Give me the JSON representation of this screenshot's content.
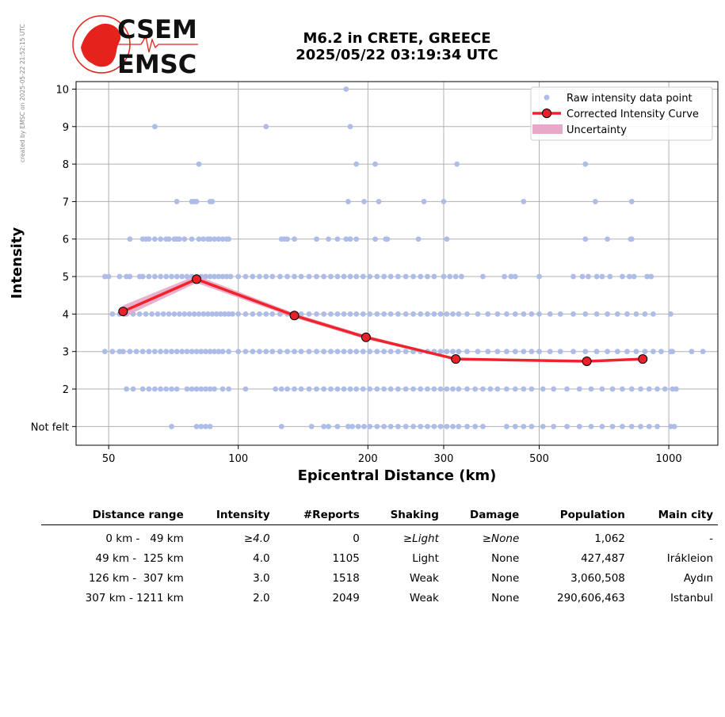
{
  "credit": "created by EMSC on 2025-05-22 21:52:15 UTC",
  "logo": {
    "line1": "CSEM",
    "line2": "EMSC"
  },
  "header": {
    "line1": "M6.2 in CRETE, GREECE",
    "line2": "2025/05/22 03:19:34 UTC"
  },
  "colors": {
    "raw_points": "#aebde8",
    "curve": "#f0232b",
    "marker": "#e8212a",
    "uncertainty": "#e8a8c8",
    "grid": "#b0b0b0",
    "logo_red": "#e5231c"
  },
  "chart_data": {
    "type": "scatter",
    "xlabel": "Epicentral Distance (km)",
    "ylabel": "Intensity",
    "x_scale": "log",
    "xlim": [
      42,
      1300
    ],
    "ylim": [
      0.5,
      10.2
    ],
    "x_ticks": [
      50,
      100,
      200,
      300,
      500,
      1000
    ],
    "y_ticks": [
      1,
      2,
      3,
      4,
      5,
      6,
      7,
      8,
      9,
      10
    ],
    "y_tick_labels": [
      "Not felt",
      "2",
      "3",
      "4",
      "5",
      "6",
      "7",
      "8",
      "9",
      "10"
    ],
    "grid": true,
    "legend_position": "top-right",
    "legend": {
      "raw": "Raw intensity data point",
      "curve": "Corrected Intensity Curve",
      "uncertainty": "Uncertainty"
    },
    "curve": {
      "name": "Corrected Intensity Curve",
      "x": [
        54,
        80,
        135,
        198,
        320,
        645,
        870
      ],
      "y": [
        4.07,
        4.93,
        3.96,
        3.38,
        2.8,
        2.74,
        2.8
      ]
    },
    "raw_points": [
      {
        "intensity": 10,
        "x": [
          178
        ]
      },
      {
        "intensity": 9,
        "x": [
          64,
          116,
          182
        ]
      },
      {
        "intensity": 8,
        "x": [
          81,
          188,
          208,
          322,
          640
        ]
      },
      {
        "intensity": 7,
        "x": [
          72,
          78,
          79,
          80,
          86,
          87,
          180,
          196,
          212,
          270,
          300,
          460,
          675,
          820
        ]
      },
      {
        "intensity": 6,
        "x": [
          56,
          60,
          61,
          62,
          64,
          66,
          68,
          69,
          71,
          72,
          73,
          75,
          78,
          81,
          83,
          85,
          86,
          88,
          90,
          92,
          94,
          95,
          126,
          128,
          130,
          135,
          152,
          162,
          170,
          178,
          182,
          188,
          208,
          220,
          222,
          262,
          305,
          640,
          720,
          815,
          820
        ]
      },
      {
        "intensity": 5,
        "x": [
          49,
          50,
          53,
          55,
          56,
          59,
          60,
          62,
          64,
          66,
          68,
          70,
          72,
          74,
          76,
          78,
          80,
          82,
          84,
          86,
          88,
          90,
          92,
          94,
          96,
          100,
          104,
          108,
          112,
          116,
          120,
          125,
          130,
          135,
          140,
          146,
          152,
          158,
          164,
          170,
          176,
          182,
          188,
          195,
          202,
          210,
          218,
          226,
          235,
          245,
          255,
          265,
          275,
          285,
          300,
          310,
          320,
          330,
          370,
          415,
          430,
          440,
          500,
          600,
          630,
          650,
          680,
          700,
          730,
          780,
          810,
          830,
          890,
          910
        ]
      },
      {
        "intensity": 4,
        "x": [
          51,
          53,
          55,
          57,
          59,
          61,
          63,
          65,
          67,
          69,
          71,
          73,
          75,
          77,
          79,
          81,
          83,
          85,
          87,
          89,
          91,
          93,
          95,
          97,
          100,
          104,
          108,
          112,
          116,
          120,
          125,
          130,
          135,
          140,
          146,
          152,
          158,
          164,
          170,
          176,
          182,
          188,
          195,
          202,
          210,
          218,
          226,
          235,
          245,
          255,
          265,
          275,
          285,
          295,
          305,
          315,
          325,
          340,
          360,
          380,
          400,
          420,
          440,
          460,
          480,
          500,
          530,
          560,
          600,
          640,
          680,
          720,
          760,
          800,
          840,
          880,
          920,
          1010
        ]
      },
      {
        "intensity": 3,
        "x": [
          49,
          51,
          53,
          54,
          56,
          58,
          60,
          62,
          64,
          66,
          68,
          70,
          72,
          74,
          76,
          78,
          80,
          82,
          84,
          86,
          88,
          90,
          92,
          95,
          100,
          104,
          108,
          112,
          116,
          120,
          125,
          130,
          135,
          140,
          146,
          152,
          158,
          164,
          170,
          176,
          182,
          188,
          195,
          202,
          210,
          218,
          226,
          235,
          245,
          255,
          265,
          275,
          285,
          295,
          305,
          315,
          325,
          340,
          360,
          380,
          400,
          420,
          440,
          460,
          480,
          500,
          530,
          560,
          600,
          640,
          680,
          720,
          760,
          800,
          840,
          880,
          920,
          960,
          1010,
          1020,
          1130,
          1200
        ]
      },
      {
        "intensity": 2,
        "x": [
          55,
          57,
          60,
          62,
          64,
          66,
          68,
          70,
          72,
          76,
          78,
          80,
          82,
          84,
          86,
          88,
          92,
          95,
          104,
          122,
          126,
          130,
          135,
          140,
          146,
          152,
          158,
          164,
          170,
          176,
          182,
          188,
          195,
          202,
          210,
          218,
          226,
          235,
          245,
          255,
          265,
          275,
          285,
          295,
          305,
          315,
          325,
          340,
          355,
          370,
          385,
          400,
          420,
          440,
          460,
          480,
          510,
          540,
          580,
          620,
          660,
          700,
          740,
          780,
          820,
          860,
          900,
          940,
          980,
          1020,
          1040
        ]
      },
      {
        "intensity": 1,
        "x": [
          70,
          80,
          82,
          84,
          86,
          126,
          148,
          158,
          162,
          170,
          180,
          184,
          190,
          196,
          202,
          210,
          218,
          226,
          235,
          245,
          255,
          265,
          275,
          285,
          295,
          305,
          315,
          325,
          340,
          355,
          370,
          420,
          440,
          460,
          480,
          510,
          540,
          580,
          620,
          660,
          700,
          740,
          780,
          820,
          860,
          900,
          940,
          1010,
          1030
        ]
      }
    ]
  },
  "table": {
    "headers": [
      "Distance range",
      "Intensity",
      "#Reports",
      "Shaking",
      "Damage",
      "Population",
      "Main city"
    ],
    "rows": [
      [
        "0 km -   49 km",
        "≥4.0",
        "0",
        "≥Light",
        "≥None",
        "1,062",
        "-"
      ],
      [
        "49 km -  125 km",
        "4.0",
        "1105",
        "Light",
        "None",
        "427,487",
        "Irákleion"
      ],
      [
        "126 km -  307 km",
        "3.0",
        "1518",
        "Weak",
        "None",
        "3,060,508",
        "Aydın"
      ],
      [
        "307 km - 1211 km",
        "2.0",
        "2049",
        "Weak",
        "None",
        "290,606,463",
        "Istanbul"
      ]
    ]
  }
}
